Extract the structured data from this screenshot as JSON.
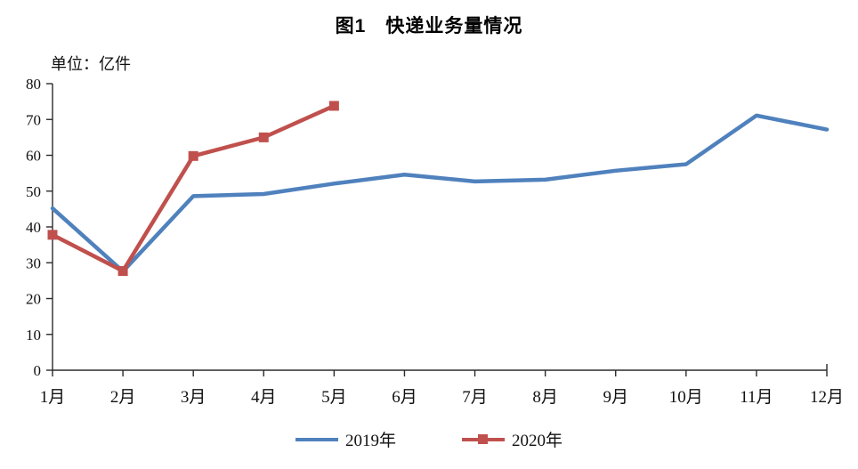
{
  "title": "图1　快递业务量情况",
  "unit_label": "单位：亿件",
  "legend": {
    "items": [
      {
        "label": "2019年",
        "color": "#4F81BD",
        "marker": "none"
      },
      {
        "label": "2020年",
        "color": "#C0504D",
        "marker": "square"
      }
    ]
  },
  "axis_color": "#2b2b2b",
  "chart_data": {
    "type": "line",
    "title": "图1　快递业务量情况",
    "xlabel": "",
    "ylabel": "单位：亿件",
    "categories": [
      "1月",
      "2月",
      "3月",
      "4月",
      "5月",
      "6月",
      "7月",
      "8月",
      "9月",
      "10月",
      "11月",
      "12月"
    ],
    "series": [
      {
        "name": "2019年",
        "color": "#4F81BD",
        "marker": "none",
        "values": [
          45.2,
          27.6,
          48.6,
          49.2,
          52.1,
          54.6,
          52.7,
          53.2,
          55.7,
          57.5,
          71.1,
          67.2
        ]
      },
      {
        "name": "2020年",
        "color": "#C0504D",
        "marker": "square",
        "values": [
          37.8,
          27.7,
          59.8,
          65.0,
          73.8
        ]
      }
    ],
    "ylim": [
      0,
      80
    ],
    "ytick_step": 10,
    "grid": false,
    "legend_position": "bottom"
  }
}
